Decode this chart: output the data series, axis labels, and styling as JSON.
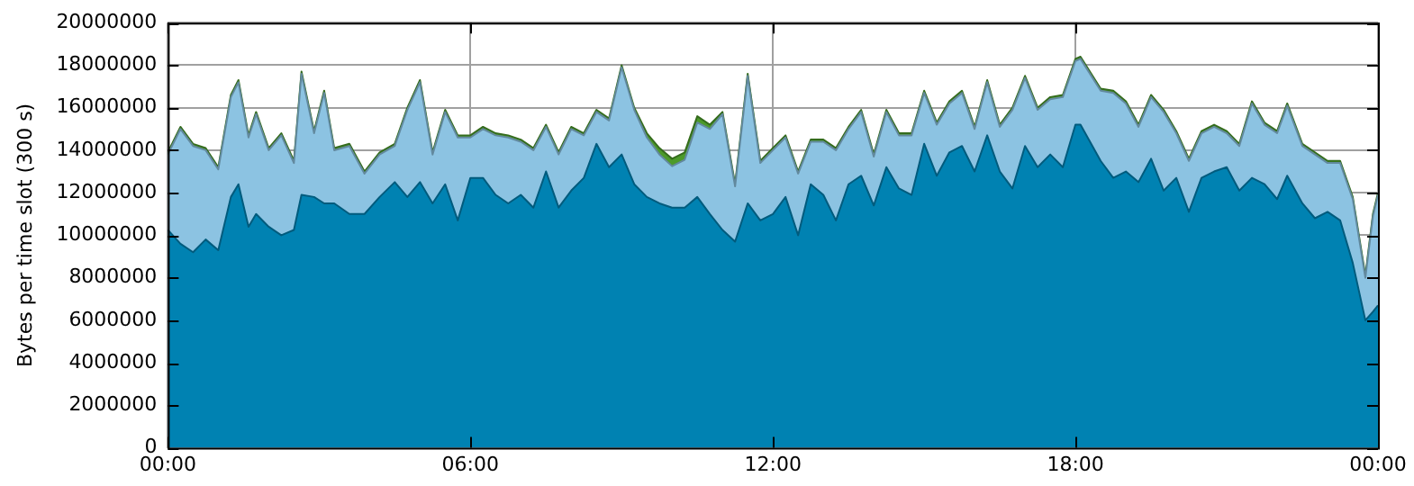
{
  "chart_data": {
    "type": "area",
    "stacked": true,
    "ylabel": "Bytes per time slot (300 s)",
    "x": [
      0,
      0.25,
      0.5,
      0.75,
      1,
      1.25,
      1.4,
      1.6,
      1.75,
      2,
      2.25,
      2.5,
      2.65,
      2.9,
      3.1,
      3.3,
      3.6,
      3.9,
      4.2,
      4.5,
      4.75,
      5,
      5.25,
      5.5,
      5.75,
      6,
      6.25,
      6.5,
      6.75,
      7,
      7.25,
      7.5,
      7.75,
      8,
      8.25,
      8.5,
      8.75,
      9,
      9.25,
      9.5,
      9.75,
      10,
      10.25,
      10.5,
      10.75,
      11,
      11.25,
      11.5,
      11.75,
      12,
      12.25,
      12.5,
      12.75,
      13,
      13.25,
      13.5,
      13.75,
      14,
      14.25,
      14.5,
      14.75,
      15,
      15.25,
      15.5,
      15.75,
      16,
      16.25,
      16.5,
      16.75,
      17,
      17.25,
      17.5,
      17.75,
      18,
      18.1,
      18.5,
      18.75,
      19,
      19.25,
      19.5,
      19.75,
      20,
      20.25,
      20.5,
      20.75,
      21,
      21.25,
      21.5,
      21.75,
      22,
      22.2,
      22.5,
      22.75,
      23,
      23.25,
      23.5,
      23.75,
      23.9,
      24
    ],
    "series": [
      {
        "color": "#0082b2",
        "values": [
          10250000,
          9600000,
          9200000,
          9800000,
          9300000,
          11800000,
          12400000,
          10400000,
          11000000,
          10400000,
          10000000,
          10250000,
          11900000,
          11800000,
          11500000,
          11500000,
          11000000,
          11000000,
          11800000,
          12500000,
          11800000,
          12500000,
          11500000,
          12400000,
          10700000,
          12700000,
          12700000,
          11900000,
          11500000,
          11900000,
          11300000,
          13000000,
          11300000,
          12100000,
          12700000,
          14300000,
          13200000,
          13800000,
          12400000,
          11800000,
          11500000,
          11300000,
          11300000,
          11800000,
          11000000,
          10250000,
          9700000,
          11500000,
          10700000,
          11000000,
          11800000,
          10000000,
          12400000,
          11900000,
          10700000,
          12400000,
          12800000,
          11400000,
          13200000,
          12200000,
          11900000,
          14300000,
          12800000,
          13900000,
          14200000,
          13000000,
          14700000,
          13000000,
          12200000,
          14200000,
          13200000,
          13800000,
          13200000,
          15200000,
          15200000,
          13500000,
          12700000,
          13000000,
          12500000,
          13600000,
          12100000,
          12700000,
          11100000,
          12700000,
          13000000,
          13200000,
          12100000,
          12700000,
          12400000,
          11700000,
          12800000,
          11500000,
          10800000,
          11100000,
          10700000,
          8700000,
          6000000,
          6400000,
          6700000
        ]
      },
      {
        "color": "#8cc3e2",
        "values": [
          3550000,
          5400000,
          5000000,
          4200000,
          3800000,
          4700000,
          4800000,
          4200000,
          4700000,
          3600000,
          4700000,
          3150000,
          5700000,
          3000000,
          5200000,
          2500000,
          3200000,
          1900000,
          2000000,
          1700000,
          4100000,
          4700000,
          2300000,
          3400000,
          3900000,
          1900000,
          2300000,
          2800000,
          3100000,
          2500000,
          2700000,
          2100000,
          2500000,
          2900000,
          2000000,
          1500000,
          2200000,
          4100000,
          3500000,
          2800000,
          2300000,
          1950000,
          2250000,
          3500000,
          4000000,
          5450000,
          2600000,
          6000000,
          2700000,
          3000000,
          2800000,
          2900000,
          2000000,
          2500000,
          3300000,
          2600000,
          3000000,
          2300000,
          2600000,
          2500000,
          2800000,
          2400000,
          2400000,
          2300000,
          2500000,
          2000000,
          2500000,
          2100000,
          3700000,
          3200000,
          2700000,
          2600000,
          3300000,
          3000000,
          3100000,
          3300000,
          4000000,
          3200000,
          2600000,
          2900000,
          3700000,
          2100000,
          2400000,
          2100000,
          2100000,
          1600000,
          2100000,
          3500000,
          2800000,
          3100000,
          3300000,
          2700000,
          3000000,
          2300000,
          2700000,
          3000000,
          2000000,
          4500000,
          5200000
        ]
      },
      {
        "color": "#4c9a2a",
        "values": [
          100000,
          100000,
          100000,
          100000,
          100000,
          100000,
          100000,
          100000,
          100000,
          100000,
          100000,
          100000,
          100000,
          100000,
          100000,
          100000,
          100000,
          100000,
          100000,
          100000,
          100000,
          100000,
          100000,
          100000,
          100000,
          100000,
          100000,
          100000,
          100000,
          100000,
          100000,
          100000,
          100000,
          100000,
          100000,
          100000,
          100000,
          100000,
          100000,
          200000,
          300000,
          350000,
          350000,
          300000,
          200000,
          100000,
          100000,
          100000,
          100000,
          100000,
          100000,
          100000,
          100000,
          100000,
          100000,
          100000,
          100000,
          100000,
          100000,
          100000,
          100000,
          100000,
          100000,
          100000,
          100000,
          100000,
          100000,
          100000,
          100000,
          100000,
          100000,
          100000,
          100000,
          100000,
          100000,
          100000,
          100000,
          100000,
          100000,
          100000,
          100000,
          100000,
          100000,
          100000,
          100000,
          100000,
          100000,
          100000,
          100000,
          100000,
          100000,
          100000,
          100000,
          100000,
          100000,
          100000,
          100000,
          100000,
          100000
        ]
      }
    ],
    "xlim": [
      0,
      24
    ],
    "xticks": [
      {
        "value": 0,
        "label": "00:00"
      },
      {
        "value": 6,
        "label": "06:00"
      },
      {
        "value": 12,
        "label": "12:00"
      },
      {
        "value": 18,
        "label": "18:00"
      },
      {
        "value": 24,
        "label": "00:00"
      }
    ],
    "ylim": [
      0,
      20000000
    ],
    "yticks": [
      0,
      2000000,
      4000000,
      6000000,
      8000000,
      10000000,
      12000000,
      14000000,
      16000000,
      18000000,
      20000000
    ],
    "grid": true,
    "legend": false
  }
}
